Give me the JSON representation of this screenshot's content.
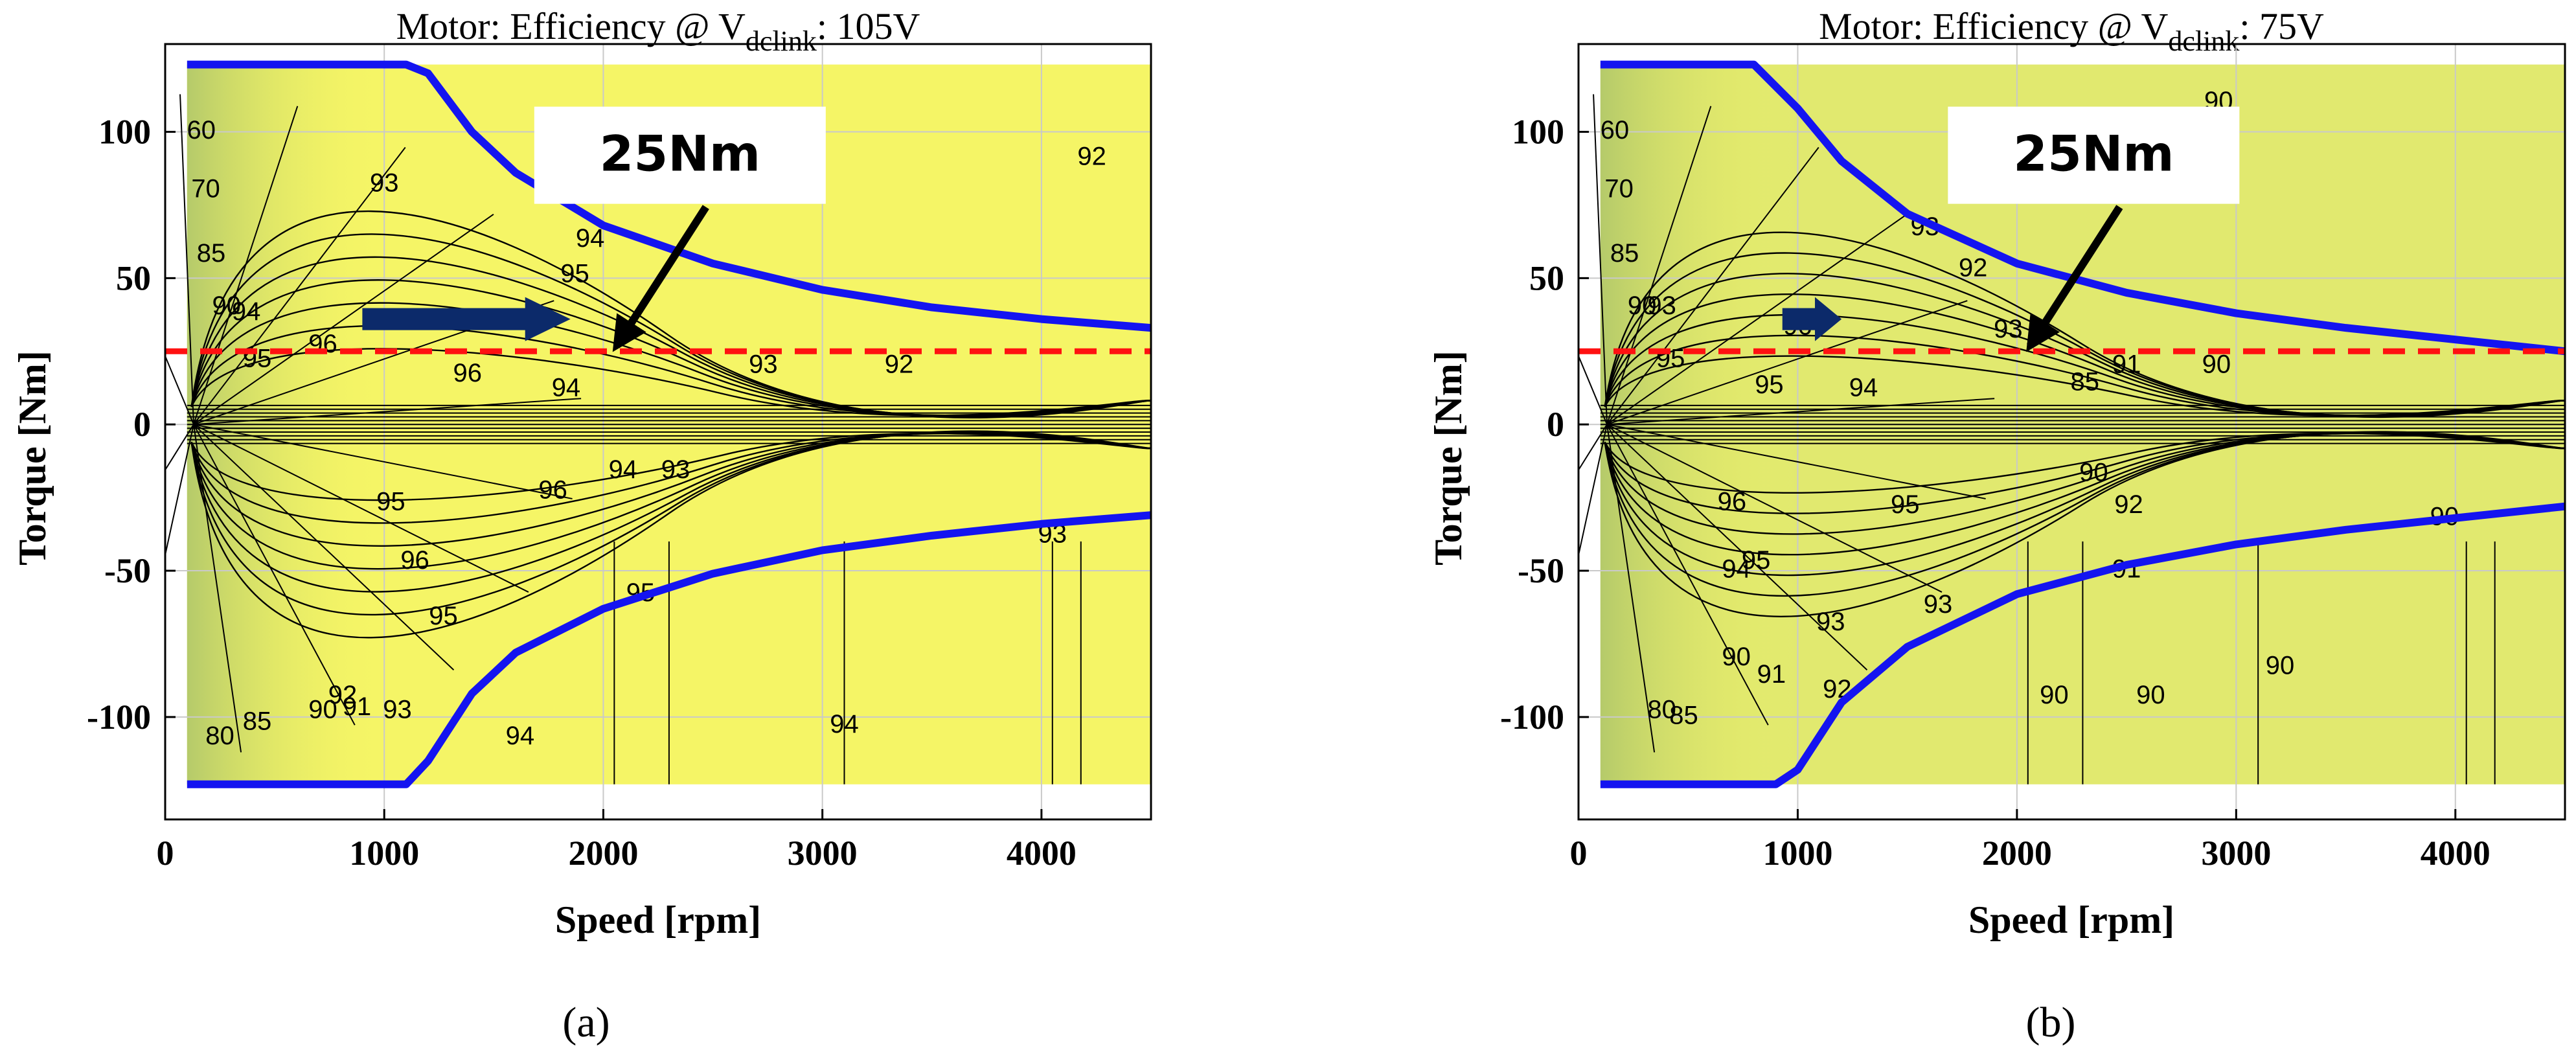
{
  "chart_data": [
    {
      "type": "contour",
      "panel_label": "(a)",
      "title_prefix": "Motor:  Efficiency @ V",
      "title_subscript": "dclink",
      "title_suffix": ": 105V",
      "xlabel": "Speed [rpm]",
      "ylabel": "Torque [Nm]",
      "xlim": [
        0,
        4500
      ],
      "ylim": [
        -135,
        130
      ],
      "xticks": [
        0,
        1000,
        2000,
        3000,
        4000
      ],
      "yticks": [
        -100,
        -50,
        0,
        50,
        100
      ],
      "grid": true,
      "colors": {
        "high": "#f5f566",
        "mid": "#e1e96f",
        "low": "#b5ca6a",
        "envelope": "#1414f0",
        "ref_line": "#ff1111",
        "arrow_navy": "#0c2a6a"
      },
      "torque_envelope": {
        "base_speed_rpm": 1200,
        "max_torque_nm": 123,
        "min_torque_nm": -123,
        "upper": [
          [
            100,
            123
          ],
          [
            1100,
            123
          ],
          [
            1200,
            120
          ],
          [
            1400,
            100
          ],
          [
            1600,
            86
          ],
          [
            2000,
            68
          ],
          [
            2500,
            55
          ],
          [
            3000,
            46
          ],
          [
            3500,
            40
          ],
          [
            4000,
            36
          ],
          [
            4500,
            33
          ]
        ],
        "lower": [
          [
            100,
            -123
          ],
          [
            1100,
            -123
          ],
          [
            1200,
            -115
          ],
          [
            1400,
            -92
          ],
          [
            1600,
            -78
          ],
          [
            2000,
            -63
          ],
          [
            2500,
            -51
          ],
          [
            3000,
            -43
          ],
          [
            3500,
            -38
          ],
          [
            4000,
            -34
          ],
          [
            4500,
            -31
          ]
        ]
      },
      "reference_line_torque_nm": 25,
      "annotation": {
        "text": "25Nm",
        "box_center": [
          2350,
          92
        ],
        "arrow_to": [
          2030,
          25
        ]
      },
      "navy_arrow": {
        "from": [
          900,
          36
        ],
        "to": [
          1850,
          36
        ]
      },
      "contour_labels": [
        {
          "text": "93",
          "x": 1000,
          "y": 82
        },
        {
          "text": "95",
          "x": 1870,
          "y": 51
        },
        {
          "text": "94",
          "x": 1940,
          "y": 63
        },
        {
          "text": "96",
          "x": 720,
          "y": 27
        },
        {
          "text": "96",
          "x": 1380,
          "y": 17
        },
        {
          "text": "94",
          "x": 1830,
          "y": 12
        },
        {
          "text": "93",
          "x": 2730,
          "y": 20
        },
        {
          "text": "92",
          "x": 3350,
          "y": 20
        },
        {
          "text": "92",
          "x": 4230,
          "y": 91
        },
        {
          "text": "95",
          "x": 1030,
          "y": -27
        },
        {
          "text": "94",
          "x": 2090,
          "y": -16
        },
        {
          "text": "93",
          "x": 2330,
          "y": -16
        },
        {
          "text": "96",
          "x": 1770,
          "y": -23
        },
        {
          "text": "96",
          "x": 1140,
          "y": -47
        },
        {
          "text": "95",
          "x": 1270,
          "y": -66
        },
        {
          "text": "95",
          "x": 2170,
          "y": -58
        },
        {
          "text": "93",
          "x": 4050,
          "y": -38
        },
        {
          "text": "92",
          "x": 810,
          "y": -93
        },
        {
          "text": "91",
          "x": 875,
          "y": -97
        },
        {
          "text": "90",
          "x": 720,
          "y": -98
        },
        {
          "text": "93",
          "x": 1060,
          "y": -98
        },
        {
          "text": "85",
          "x": 420,
          "y": -102
        },
        {
          "text": "94",
          "x": 1620,
          "y": -107
        },
        {
          "text": "94",
          "x": 3100,
          "y": -103
        },
        {
          "text": "60",
          "x": 165,
          "y": 100
        },
        {
          "text": "70",
          "x": 185,
          "y": 80
        },
        {
          "text": "85",
          "x": 210,
          "y": 58
        },
        {
          "text": "90",
          "x": 280,
          "y": 40
        },
        {
          "text": "94",
          "x": 370,
          "y": 38
        },
        {
          "text": "95",
          "x": 420,
          "y": 22
        },
        {
          "text": "80",
          "x": 250,
          "y": -107
        }
      ]
    },
    {
      "type": "contour",
      "panel_label": "(b)",
      "title_prefix": "Motor:  Efficiency @ V",
      "title_subscript": "dclink",
      "title_suffix": ": 75V",
      "xlabel": "Speed [rpm]",
      "ylabel": "Torque [Nm]",
      "xlim": [
        0,
        4500
      ],
      "ylim": [
        -135,
        130
      ],
      "xticks": [
        0,
        1000,
        2000,
        3000,
        4000
      ],
      "yticks": [
        -100,
        -50,
        0,
        50,
        100
      ],
      "grid": true,
      "colors": {
        "high": "#f5f566",
        "mid": "#e1e96f",
        "low": "#b5ca6a",
        "envelope": "#1414f0",
        "ref_line": "#ff1111",
        "arrow_navy": "#0c2a6a"
      },
      "torque_envelope": {
        "base_speed_rpm": 800,
        "max_torque_nm": 123,
        "min_torque_nm": -123,
        "upper": [
          [
            100,
            123
          ],
          [
            800,
            123
          ],
          [
            1000,
            108
          ],
          [
            1200,
            90
          ],
          [
            1500,
            72
          ],
          [
            2000,
            55
          ],
          [
            2500,
            45
          ],
          [
            3000,
            38
          ],
          [
            3500,
            33
          ],
          [
            4000,
            29
          ],
          [
            4500,
            25
          ]
        ],
        "lower": [
          [
            100,
            -123
          ],
          [
            900,
            -123
          ],
          [
            1000,
            -118
          ],
          [
            1200,
            -95
          ],
          [
            1500,
            -76
          ],
          [
            2000,
            -58
          ],
          [
            2500,
            -48
          ],
          [
            3000,
            -41
          ],
          [
            3500,
            -36
          ],
          [
            4000,
            -32
          ],
          [
            4500,
            -28
          ]
        ]
      },
      "reference_line_torque_nm": 25,
      "annotation": {
        "text": "25Nm",
        "box_center": [
          2350,
          92
        ],
        "arrow_to": [
          2030,
          25
        ]
      },
      "navy_arrow": {
        "from": [
          930,
          36
        ],
        "to": [
          1200,
          36
        ]
      },
      "contour_labels": [
        {
          "text": "93",
          "x": 1580,
          "y": 67
        },
        {
          "text": "92",
          "x": 1800,
          "y": 53
        },
        {
          "text": "93",
          "x": 1960,
          "y": 32
        },
        {
          "text": "96",
          "x": 1000,
          "y": 33
        },
        {
          "text": "91",
          "x": 2500,
          "y": 20
        },
        {
          "text": "90",
          "x": 2910,
          "y": 20
        },
        {
          "text": "94",
          "x": 1300,
          "y": 12
        },
        {
          "text": "95",
          "x": 870,
          "y": 13
        },
        {
          "text": "85",
          "x": 2310,
          "y": 14
        },
        {
          "text": "90",
          "x": 2350,
          "y": -17
        },
        {
          "text": "92",
          "x": 2510,
          "y": -28
        },
        {
          "text": "91",
          "x": 2500,
          "y": -50
        },
        {
          "text": "96",
          "x": 700,
          "y": -27
        },
        {
          "text": "95",
          "x": 810,
          "y": -47
        },
        {
          "text": "94",
          "x": 720,
          "y": -50
        },
        {
          "text": "95",
          "x": 1490,
          "y": -28
        },
        {
          "text": "93",
          "x": 1150,
          "y": -68
        },
        {
          "text": "93",
          "x": 1640,
          "y": -62
        },
        {
          "text": "92",
          "x": 1180,
          "y": -91
        },
        {
          "text": "91",
          "x": 880,
          "y": -86
        },
        {
          "text": "90",
          "x": 720,
          "y": -80
        },
        {
          "text": "85",
          "x": 480,
          "y": -100
        },
        {
          "text": "80",
          "x": 380,
          "y": -98
        },
        {
          "text": "90",
          "x": 2170,
          "y": -93
        },
        {
          "text": "90",
          "x": 2610,
          "y": -93
        },
        {
          "text": "90",
          "x": 3200,
          "y": -83
        },
        {
          "text": "90",
          "x": 3950,
          "y": -32
        },
        {
          "text": "90",
          "x": 2920,
          "y": 110
        },
        {
          "text": "60",
          "x": 165,
          "y": 100
        },
        {
          "text": "70",
          "x": 185,
          "y": 80
        },
        {
          "text": "85",
          "x": 210,
          "y": 58
        },
        {
          "text": "90",
          "x": 290,
          "y": 40
        },
        {
          "text": "93",
          "x": 380,
          "y": 40
        },
        {
          "text": "95",
          "x": 420,
          "y": 22
        }
      ]
    }
  ]
}
